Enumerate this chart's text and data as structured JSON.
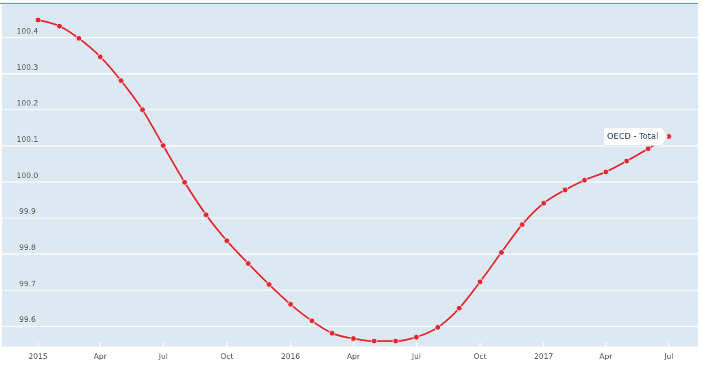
{
  "chart_data": {
    "type": "line",
    "x": [
      "2015-01",
      "2015-02",
      "2015-03",
      "2015-04",
      "2015-05",
      "2015-06",
      "2015-07",
      "2015-08",
      "2015-09",
      "2015-10",
      "2015-11",
      "2015-12",
      "2016-01",
      "2016-02",
      "2016-03",
      "2016-04",
      "2016-05",
      "2016-06",
      "2016-07",
      "2016-08",
      "2016-09",
      "2016-10",
      "2016-11",
      "2016-12",
      "2017-01",
      "2017-02",
      "2017-03",
      "2017-04",
      "2017-05",
      "2017-06",
      "2017-07"
    ],
    "series": [
      {
        "name": "OECD - Total",
        "color": "#e8272f",
        "values": [
          100.449,
          100.432,
          100.398,
          100.347,
          100.281,
          100.2,
          100.101,
          99.999,
          99.909,
          99.837,
          99.774,
          99.716,
          99.661,
          99.615,
          99.581,
          99.566,
          99.559,
          99.559,
          99.57,
          99.597,
          99.65,
          99.723,
          99.805,
          99.882,
          99.941,
          99.978,
          100.005,
          100.028,
          100.058,
          100.092,
          100.126
        ]
      }
    ],
    "xlim": [
      "2014-11-10",
      "2017-08-12"
    ],
    "xticks": [
      {
        "value": "2015-01",
        "label": "2015"
      },
      {
        "value": "2015-04",
        "label": "Apr"
      },
      {
        "value": "2015-07",
        "label": "Jul"
      },
      {
        "value": "2015-10",
        "label": "Oct"
      },
      {
        "value": "2016-01",
        "label": "2016"
      },
      {
        "value": "2016-04",
        "label": "Apr"
      },
      {
        "value": "2016-07",
        "label": "Jul"
      },
      {
        "value": "2016-10",
        "label": "Oct"
      },
      {
        "value": "2017-01",
        "label": "2017"
      },
      {
        "value": "2017-04",
        "label": "Apr"
      },
      {
        "value": "2017-07",
        "label": "Jul"
      }
    ],
    "ylim": [
      99.544,
      100.493
    ],
    "yticks": [
      {
        "value": 99.6,
        "label": "99.6"
      },
      {
        "value": 99.7,
        "label": "99.7"
      },
      {
        "value": 99.8,
        "label": "99.8"
      },
      {
        "value": 99.9,
        "label": "99.9"
      },
      {
        "value": 100.0,
        "label": "100.0"
      },
      {
        "value": 100.1,
        "label": "100.1"
      },
      {
        "value": 100.2,
        "label": "100.2"
      },
      {
        "value": 100.3,
        "label": "100.3"
      },
      {
        "value": 100.4,
        "label": "100.4"
      }
    ],
    "grid": "y",
    "marker": "circle",
    "line_style": "solid"
  }
}
